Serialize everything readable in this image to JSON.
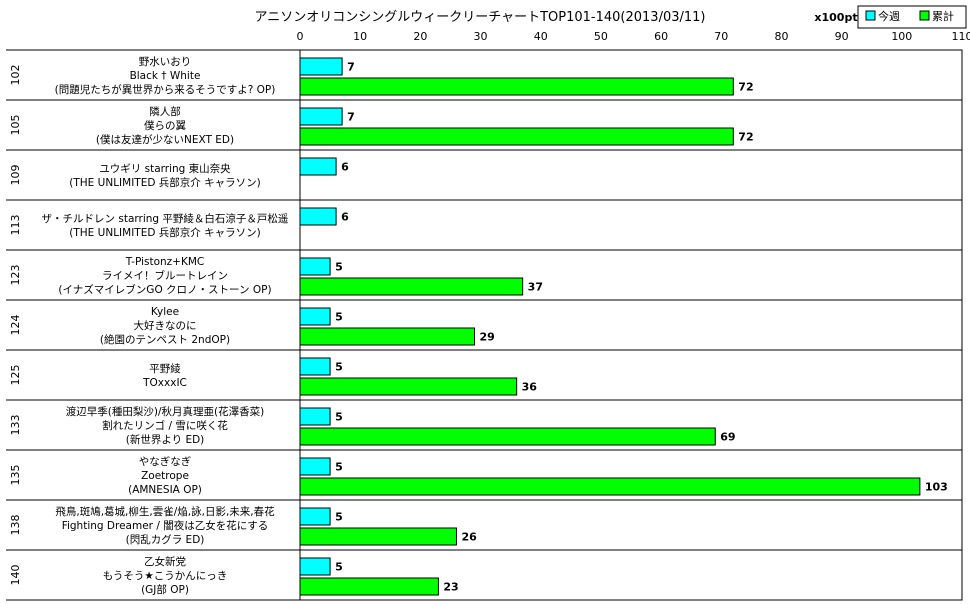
{
  "chart_data": {
    "type": "bar",
    "orientation": "horizontal",
    "title": "アニソンオリコンシングルウィークリーチャートTOP101-140(2013/03/11)",
    "unit": "x100pt",
    "xlim": [
      0,
      110
    ],
    "ticks": [
      0,
      10,
      20,
      30,
      40,
      50,
      60,
      70,
      80,
      90,
      100,
      110
    ],
    "legend": [
      {
        "name": "今週",
        "color": "#00ffff"
      },
      {
        "name": "累計",
        "color": "#00ff00"
      }
    ],
    "legend_position": "top-right",
    "entries": [
      {
        "rank": "102",
        "lines": [
          "野水いおり",
          "Black † White",
          "(問題児たちが異世界から来るそうですよ? OP)"
        ],
        "weekly": 7,
        "total": 72
      },
      {
        "rank": "105",
        "lines": [
          "隣人部",
          "僕らの翼",
          "(僕は友達が少ないNEXT ED)"
        ],
        "weekly": 7,
        "total": 72
      },
      {
        "rank": "109",
        "lines": [
          "ユウギリ starring 東山奈央",
          "(THE UNLIMITED 兵部京介 キャラソン)"
        ],
        "weekly": 6,
        "total": null
      },
      {
        "rank": "113",
        "lines": [
          "ザ・チルドレン starring 平野綾＆白石涼子＆戸松遥",
          "(THE UNLIMITED 兵部京介 キャラソン)"
        ],
        "weekly": 6,
        "total": null
      },
      {
        "rank": "123",
        "lines": [
          "T-Pistonz+KMC",
          "ライメイ！ブルートレイン",
          "(イナズマイレブンGO クロノ・ストーン OP)"
        ],
        "weekly": 5,
        "total": 37
      },
      {
        "rank": "124",
        "lines": [
          "Kylee",
          "大好きなのに",
          "(絶園のテンペスト 2ndOP)"
        ],
        "weekly": 5,
        "total": 29
      },
      {
        "rank": "125",
        "lines": [
          "平野綾",
          "TOxxxIC"
        ],
        "weekly": 5,
        "total": 36
      },
      {
        "rank": "133",
        "lines": [
          "渡辺早季(種田梨沙)/秋月真理亜(花澤香菜)",
          "割れたリンゴ / 雪に咲く花",
          "(新世界より ED)"
        ],
        "weekly": 5,
        "total": 69
      },
      {
        "rank": "135",
        "lines": [
          "やなぎなぎ",
          "Zoetrope",
          "(AMNESIA OP)"
        ],
        "weekly": 5,
        "total": 103
      },
      {
        "rank": "138",
        "lines": [
          "飛鳥,斑鳩,葛城,柳生,雲雀/焔,詠,日影,未来,春花",
          "Fighting Dreamer / 闇夜は乙女を花にする",
          "(閃乱カグラ ED)"
        ],
        "weekly": 5,
        "total": 26
      },
      {
        "rank": "140",
        "lines": [
          "乙女新党",
          "もうそう★こうかんにっき",
          "(GJ部 OP)"
        ],
        "weekly": 5,
        "total": 23
      }
    ]
  }
}
